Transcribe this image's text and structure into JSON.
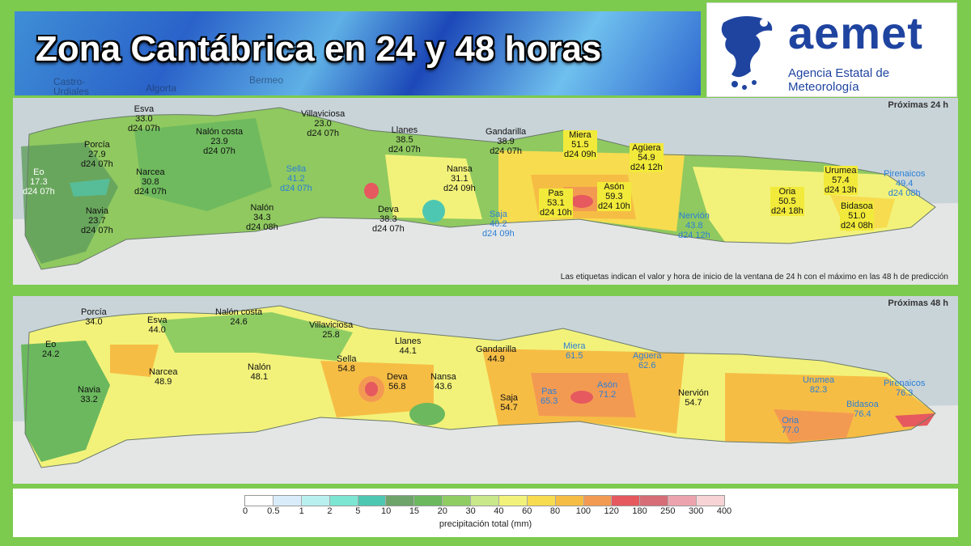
{
  "banner": {
    "title": "Zona Cantábrica en 24 y 48 horas",
    "bg_places": [
      "Castro-",
      "Urdiales",
      "Algorta",
      "Bermeo"
    ]
  },
  "logo": {
    "word": "aemet",
    "subtitle": "Agencia Estatal de Meteorología",
    "brand_color": "#1f44a0"
  },
  "panel24": {
    "title": "Próximas 24 h",
    "note": "Las etiquetas indican el valor y hora de inicio de la ventana de 24 h con el máximo en las 48 h de predicción",
    "labels": [
      {
        "name": "Esva",
        "value": "33.0",
        "time": "d24 07h",
        "style": "black"
      },
      {
        "name": "Villaviciosa",
        "value": "23.0",
        "time": "d24 07h",
        "style": "black"
      },
      {
        "name": "Llanes",
        "value": "38.5",
        "time": "d24 07h",
        "style": "black"
      },
      {
        "name": "Gandarilla",
        "value": "38.9",
        "time": "d24 07h",
        "style": "black"
      },
      {
        "name": "Miera",
        "value": "51.5",
        "time": "d24 09h",
        "style": "highlight"
      },
      {
        "name": "Agüera",
        "value": "54.9",
        "time": "d24 12h",
        "style": "highlight"
      },
      {
        "name": "Porcía",
        "value": "27.9",
        "time": "d24 07h",
        "style": "black"
      },
      {
        "name": "Nalón costa",
        "value": "23.9",
        "time": "d24 07h",
        "style": "black"
      },
      {
        "name": "Eo",
        "value": "17.3",
        "time": "d24 07h",
        "style": "white"
      },
      {
        "name": "Narcea",
        "value": "30.8",
        "time": "d24 07h",
        "style": "black"
      },
      {
        "name": "Sella",
        "value": "41.2",
        "time": "d24 07h",
        "style": "blue"
      },
      {
        "name": "Nansa",
        "value": "31.1",
        "time": "d24 09h",
        "style": "black"
      },
      {
        "name": "Pas",
        "value": "53.1",
        "time": "d24 10h",
        "style": "highlight"
      },
      {
        "name": "Asón",
        "value": "59.3",
        "time": "d24 10h",
        "style": "highlight"
      },
      {
        "name": "Oria",
        "value": "50.5",
        "time": "d24 18h",
        "style": "highlight"
      },
      {
        "name": "Urumea",
        "value": "57.4",
        "time": "d24 13h",
        "style": "highlight"
      },
      {
        "name": "Pirenaicos",
        "value": "49.4",
        "time": "d24 08h",
        "style": "blue"
      },
      {
        "name": "Navia",
        "value": "23.7",
        "time": "d24 07h",
        "style": "black"
      },
      {
        "name": "Nalón",
        "value": "34.3",
        "time": "d24 08h",
        "style": "black"
      },
      {
        "name": "Deva",
        "value": "38.3",
        "time": "d24 07h",
        "style": "black"
      },
      {
        "name": "Saja",
        "value": "40.2",
        "time": "d24 09h",
        "style": "blue"
      },
      {
        "name": "Nervión",
        "value": "43.8",
        "time": "d24 12h",
        "style": "blue"
      },
      {
        "name": "Bidasoa",
        "value": "51.0",
        "time": "d24 08h",
        "style": "highlight"
      }
    ]
  },
  "panel48": {
    "title": "Próximas 48 h",
    "labels": [
      {
        "name": "Porcía",
        "value": "34.0",
        "style": "black"
      },
      {
        "name": "Esva",
        "value": "44.0",
        "style": "black"
      },
      {
        "name": "Nalón costa",
        "value": "24.6",
        "style": "black"
      },
      {
        "name": "Villaviciosa",
        "value": "25.8",
        "style": "black"
      },
      {
        "name": "Eo",
        "value": "24.2",
        "style": "black"
      },
      {
        "name": "Llanes",
        "value": "44.1",
        "style": "black"
      },
      {
        "name": "Gandarilla",
        "value": "44.9",
        "style": "black"
      },
      {
        "name": "Miera",
        "value": "61.5",
        "style": "blue"
      },
      {
        "name": "Agüera",
        "value": "62.6",
        "style": "blue"
      },
      {
        "name": "Narcea",
        "value": "48.9",
        "style": "black"
      },
      {
        "name": "Nalón",
        "value": "48.1",
        "style": "black"
      },
      {
        "name": "Sella",
        "value": "54.8",
        "style": "black"
      },
      {
        "name": "Deva",
        "value": "56.8",
        "style": "black"
      },
      {
        "name": "Nansa",
        "value": "43.6",
        "style": "black"
      },
      {
        "name": "Navia",
        "value": "33.2",
        "style": "black"
      },
      {
        "name": "Saja",
        "value": "54.7",
        "style": "black"
      },
      {
        "name": "Pas",
        "value": "65.3",
        "style": "blue"
      },
      {
        "name": "Asón",
        "value": "71.2",
        "style": "blue"
      },
      {
        "name": "Nervión",
        "value": "54.7",
        "style": "black"
      },
      {
        "name": "Urumea",
        "value": "82.3",
        "style": "blue"
      },
      {
        "name": "Pirenaicos",
        "value": "76.3",
        "style": "blue"
      },
      {
        "name": "Bidasoa",
        "value": "76.4",
        "style": "blue"
      },
      {
        "name": "Oria",
        "value": "77.0",
        "style": "blue"
      }
    ]
  },
  "legend": {
    "caption": "precipitación total (mm)",
    "ticks": [
      "0",
      "0.5",
      "1",
      "2",
      "5",
      "10",
      "15",
      "20",
      "30",
      "40",
      "60",
      "80",
      "100",
      "120",
      "180",
      "250",
      "300",
      "400"
    ],
    "colors": [
      "#ffffff",
      "#d9ecf9",
      "#b8f0ef",
      "#7de6d2",
      "#4ec7b2",
      "#6ea36a",
      "#6bb85e",
      "#8fcd63",
      "#c8e88a",
      "#f2f27a",
      "#f7dc4f",
      "#f6bd45",
      "#f39a52",
      "#e5595f",
      "#d66d77",
      "#eda3ad",
      "#f7d3d6"
    ]
  }
}
